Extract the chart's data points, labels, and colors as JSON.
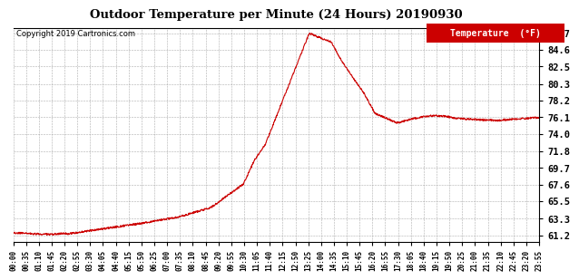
{
  "title": "Outdoor Temperature per Minute (24 Hours) 20190930",
  "copyright": "Copyright 2019 Cartronics.com",
  "legend_label": "Temperature  (°F)",
  "line_color": "#cc0000",
  "background_color": "#ffffff",
  "grid_color": "#999999",
  "yticks": [
    61.2,
    63.3,
    65.5,
    67.6,
    69.7,
    71.8,
    74.0,
    76.1,
    78.2,
    80.3,
    82.5,
    84.6,
    86.7
  ],
  "ylim": [
    60.4,
    87.4
  ],
  "x_tick_labels": [
    "00:00",
    "00:35",
    "01:10",
    "01:45",
    "02:20",
    "02:55",
    "03:30",
    "04:05",
    "04:40",
    "05:15",
    "05:50",
    "06:25",
    "07:00",
    "07:35",
    "08:10",
    "08:45",
    "09:20",
    "09:55",
    "10:30",
    "11:05",
    "11:40",
    "12:15",
    "12:50",
    "13:25",
    "14:00",
    "14:35",
    "15:10",
    "15:45",
    "16:20",
    "16:55",
    "17:30",
    "18:05",
    "18:40",
    "19:15",
    "19:50",
    "20:25",
    "21:00",
    "21:35",
    "22:10",
    "22:45",
    "23:20",
    "23:55"
  ]
}
